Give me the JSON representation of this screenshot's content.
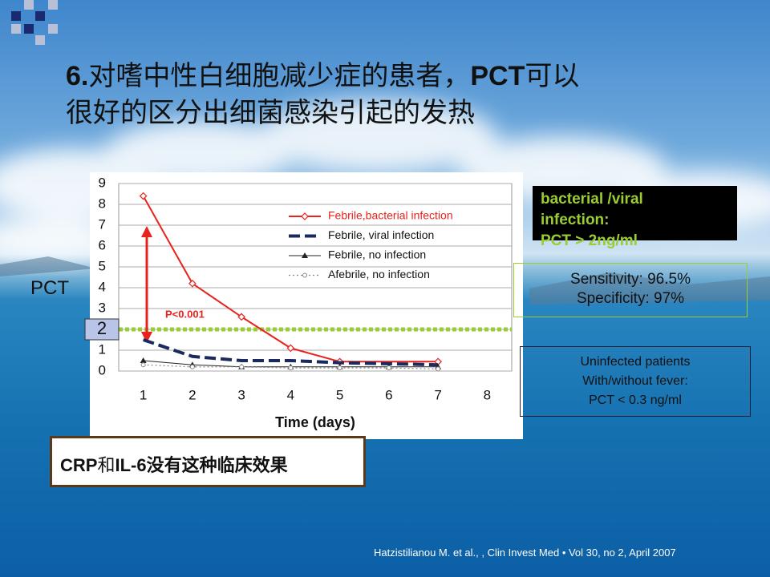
{
  "slide": {
    "title_line1": [
      "6.",
      "对嗜中性白细胞减少症的患者，",
      "PCT",
      "可以"
    ],
    "title_line2": "很好的区分出细菌感染引起的发热",
    "black_box": [
      "bacterial  /viral",
      "infection:",
      "PCT > 2ng/ml"
    ],
    "sens_box": [
      "Sensitivity: 96.5%",
      "Specificity: 97%"
    ],
    "uninf_box": [
      "Uninfected patients",
      "With/without fever:",
      "PCT < 0.3 ng/ml"
    ],
    "crp_box": [
      "CRP",
      "和",
      "IL-6",
      "没有这种临床效果"
    ],
    "citation": "Hatzistilianou M. et al., , Clin Invest Med • Vol 30, no 2, April 2007"
  },
  "chart_data": {
    "type": "line",
    "y_label": "PCT",
    "x_label": "Time (days)",
    "annotation": "P<0.001",
    "threshold": 2,
    "xlim": [
      0.5,
      8.5
    ],
    "xticks": [
      1,
      2,
      3,
      4,
      5,
      6,
      7,
      8
    ],
    "ylim": [
      0,
      9
    ],
    "yticks": [
      0,
      1,
      2,
      3,
      4,
      5,
      6,
      7,
      8,
      9
    ],
    "grid": true,
    "series": [
      {
        "name": "Febrile,bacterial infection",
        "color": "#e8231e",
        "dash": "solid",
        "marker": "diamond",
        "x": [
          1,
          2,
          3,
          4,
          5,
          7
        ],
        "values": [
          8.4,
          4.2,
          2.6,
          1.1,
          0.45,
          0.45
        ]
      },
      {
        "name": "Febrile, viral infection",
        "color": "#1a2a5e",
        "dash": "dashed",
        "marker": "none",
        "x": [
          1,
          2,
          3,
          4,
          5,
          6,
          7
        ],
        "values": [
          1.5,
          0.7,
          0.5,
          0.5,
          0.4,
          0.35,
          0.3
        ]
      },
      {
        "name": "Febrile, no infection",
        "color": "#222222",
        "dash": "solid",
        "marker": "triangle",
        "x": [
          1,
          2,
          3,
          4,
          5,
          6,
          7
        ],
        "values": [
          0.5,
          0.3,
          0.2,
          0.2,
          0.2,
          0.2,
          0.2
        ]
      },
      {
        "name": "Afebrile, no infection",
        "color": "#888888",
        "dash": "dotted",
        "marker": "circle",
        "x": [
          1,
          2,
          3,
          4,
          5,
          6,
          7
        ],
        "values": [
          0.3,
          0.2,
          0.2,
          0.15,
          0.15,
          0.15,
          0.1
        ]
      }
    ]
  }
}
